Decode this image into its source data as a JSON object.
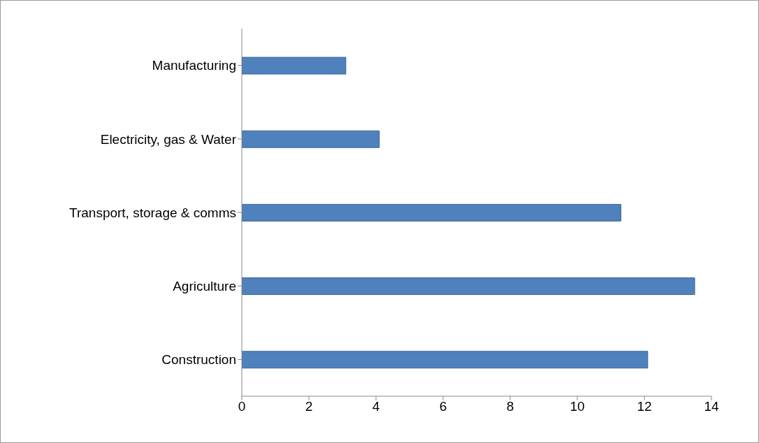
{
  "chart_data": {
    "type": "bar",
    "orientation": "horizontal",
    "categories": [
      "Manufacturing",
      "Electricity, gas & Water",
      "Transport, storage & comms",
      "Agriculture",
      "Construction"
    ],
    "values": [
      3.1,
      4.1,
      11.3,
      13.5,
      12.1
    ],
    "color": "#4f81bd",
    "xlim": [
      0,
      14
    ],
    "xticks": [
      0,
      2,
      4,
      6,
      8,
      10,
      12,
      14
    ],
    "grid": false,
    "legend": false
  }
}
